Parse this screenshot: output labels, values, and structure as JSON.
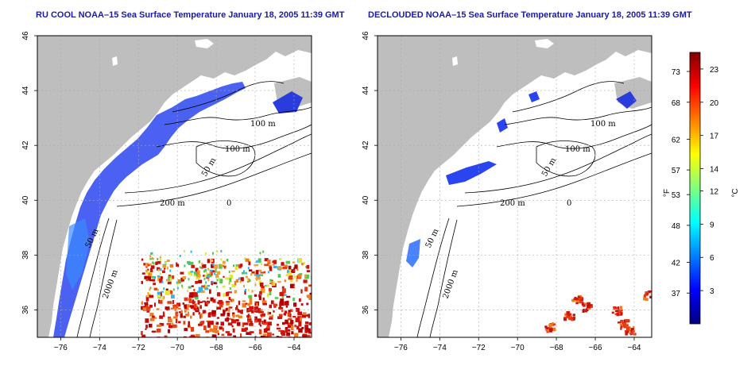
{
  "panels": [
    {
      "title": "RU COOL NOAA–15 Sea Surface Temperature January 18, 2005 11:39 GMT",
      "type": "ru-cool"
    },
    {
      "title": "DECLOUDED NOAA–15 Sea Surface Temperature January 18, 2005 11:39 GMT",
      "type": "declouded"
    }
  ],
  "axes": {
    "lon_ticks": [
      "−76",
      "−74",
      "−72",
      "−70",
      "−68",
      "−66",
      "−64"
    ],
    "lon_values": [
      -76,
      -74,
      -72,
      -70,
      -68,
      -66,
      -64
    ],
    "lat_ticks": [
      "36",
      "38",
      "40",
      "42",
      "44",
      "46"
    ],
    "lat_values": [
      36,
      38,
      40,
      42,
      44,
      46
    ],
    "lon_range": [
      -77.2,
      -63.1
    ],
    "lat_range": [
      35.0,
      46.0
    ]
  },
  "contour_labels": {
    "c100a": "100 m",
    "c100b": "100 m",
    "c50a": "50 m",
    "c200": "200 m",
    "c50b": "50 m",
    "c2000": "2000 m",
    "c0": "0"
  },
  "colorbar": {
    "fahrenheit_ticks": [
      "73",
      "68",
      "62",
      "57",
      "53",
      "48",
      "42",
      "37"
    ],
    "celsius_ticks": [
      "23",
      "20",
      "17",
      "14",
      "12",
      "9",
      "6",
      "3"
    ],
    "celsius_values": [
      23,
      20,
      17,
      14,
      12,
      9,
      6,
      3
    ],
    "fahrenheit_values": [
      73,
      68,
      62,
      57,
      53,
      48,
      42,
      37
    ],
    "range_c": [
      0,
      24.5
    ],
    "unit_f": "°F",
    "unit_c": "°C",
    "colors": [
      "#00007f",
      "#0000ff",
      "#007fff",
      "#00ffff",
      "#7fff7f",
      "#ffff00",
      "#ff7f00",
      "#ff0000",
      "#7f0000"
    ]
  },
  "colors": {
    "land": "#bebebe",
    "ocean": "#ffffff",
    "title": "#1a1aa8",
    "cold": "#1e3cff"
  }
}
